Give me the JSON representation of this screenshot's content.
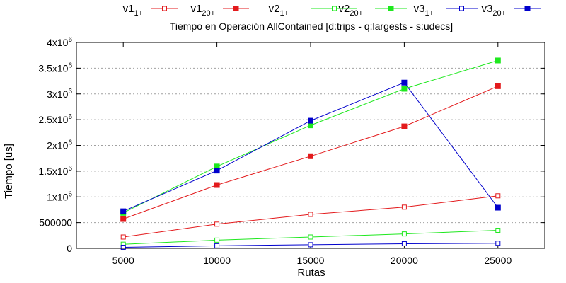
{
  "chart_data": {
    "type": "line",
    "title": "Tiempo en Operación AllContained [d:trips - q:largests - s:udecs]",
    "xlabel": "Rutas",
    "ylabel": "Tiempo [us]",
    "x": [
      5000,
      10000,
      15000,
      20000,
      25000
    ],
    "xlim": [
      2500,
      27500
    ],
    "ylim": [
      0,
      4000000
    ],
    "x_ticks": [
      "5000",
      "10000",
      "15000",
      "20000",
      "25000"
    ],
    "y_ticks": [
      {
        "value": 0,
        "base": "0",
        "exp": ""
      },
      {
        "value": 500000,
        "base": "500000",
        "exp": ""
      },
      {
        "value": 1000000,
        "base": "1x10",
        "exp": "6"
      },
      {
        "value": 1500000,
        "base": "1.5x10",
        "exp": "6"
      },
      {
        "value": 2000000,
        "base": "2x10",
        "exp": "6"
      },
      {
        "value": 2500000,
        "base": "2.5x10",
        "exp": "6"
      },
      {
        "value": 3000000,
        "base": "3x10",
        "exp": "6"
      },
      {
        "value": 3500000,
        "base": "3.5x10",
        "exp": "6"
      },
      {
        "value": 4000000,
        "base": "4x10",
        "exp": "6"
      }
    ],
    "grid": "horizontal",
    "legend_position": "top",
    "series": [
      {
        "name": "v1",
        "sub": "1+",
        "color": "#e31a1c",
        "marker": "open-square",
        "values": [
          220000,
          470000,
          660000,
          800000,
          1020000
        ]
      },
      {
        "name": "v1",
        "sub": "20+",
        "color": "#e31a1c",
        "marker": "filled-square",
        "values": [
          570000,
          1230000,
          1790000,
          2370000,
          3150000
        ]
      },
      {
        "name": "v2",
        "sub": "1+",
        "color": "#1ee81e",
        "marker": "open-square",
        "values": [
          80000,
          160000,
          220000,
          280000,
          350000
        ]
      },
      {
        "name": "v2",
        "sub": "20+",
        "color": "#1ee81e",
        "marker": "filled-square",
        "values": [
          690000,
          1590000,
          2390000,
          3100000,
          3650000
        ]
      },
      {
        "name": "v3",
        "sub": "1+",
        "color": "#0000cc",
        "marker": "open-square",
        "values": [
          20000,
          50000,
          70000,
          90000,
          100000
        ]
      },
      {
        "name": "v3",
        "sub": "20+",
        "color": "#0000cc",
        "marker": "filled-square",
        "values": [
          720000,
          1510000,
          2480000,
          3220000,
          790000
        ]
      }
    ]
  }
}
